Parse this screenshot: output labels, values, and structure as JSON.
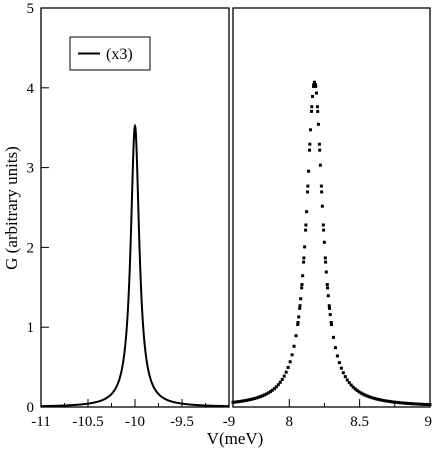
{
  "chart_data": {
    "type": "line",
    "title": "",
    "xlabel": "V(meV)",
    "ylabel": "G (arbitrary units)",
    "ylim": [
      0,
      5
    ],
    "yticks": [
      "0",
      "1",
      "2",
      "3",
      "4",
      "5"
    ],
    "grid": false,
    "legend": {
      "position": "top-left",
      "entries": [
        "(x3)"
      ]
    },
    "panels": [
      {
        "panel": "left",
        "xlim": [
          -11,
          -9
        ],
        "xticks": [
          "-11",
          "-10.5",
          "-10",
          "-9.5",
          "-9"
        ],
        "series": [
          {
            "name": "(x3)",
            "style": "solid",
            "lorentzian": {
              "center": -10.0,
              "peak": 3.52,
              "half_width": 0.055,
              "baseline": 0.0
            }
          }
        ]
      },
      {
        "panel": "right",
        "xlim": [
          7.6,
          9
        ],
        "xticks": [
          "8",
          "8.5",
          "9"
        ],
        "series": [
          {
            "style": "dotted",
            "lorentzian": {
              "center": 8.18,
              "peak": 4.07,
              "half_width": 0.07,
              "baseline": 0.0
            }
          }
        ]
      }
    ]
  },
  "colors": {
    "line": "#000000",
    "background": "#ffffff"
  }
}
